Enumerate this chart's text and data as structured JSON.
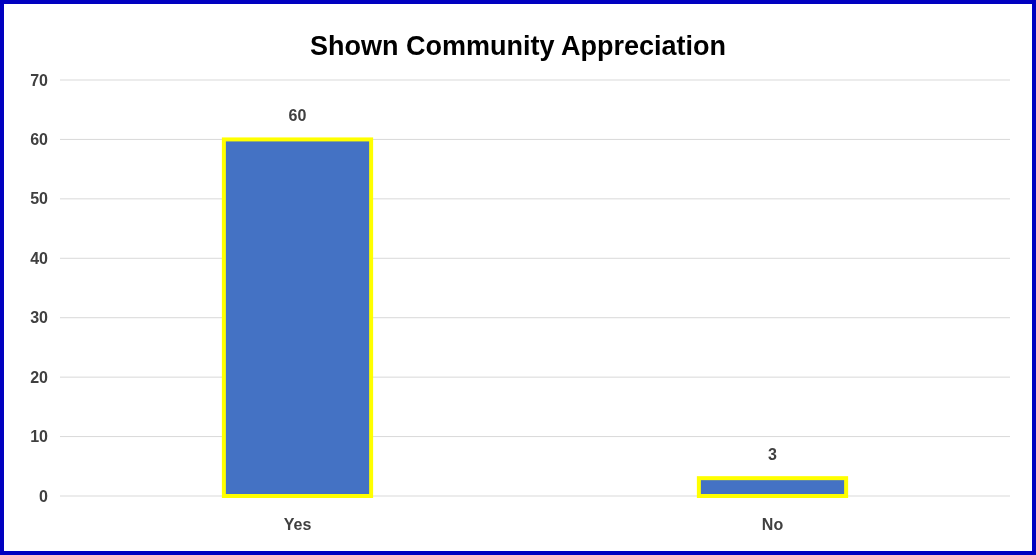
{
  "chart_data": {
    "type": "bar",
    "title": "Shown Community Appreciation",
    "categories": [
      "Yes",
      "No"
    ],
    "values": [
      60,
      3
    ],
    "color": "#4472c4",
    "ylim": [
      0,
      70
    ],
    "yticks": [
      0,
      10,
      20,
      30,
      40,
      50,
      60,
      70
    ],
    "grid": "y",
    "data_labels": true
  }
}
